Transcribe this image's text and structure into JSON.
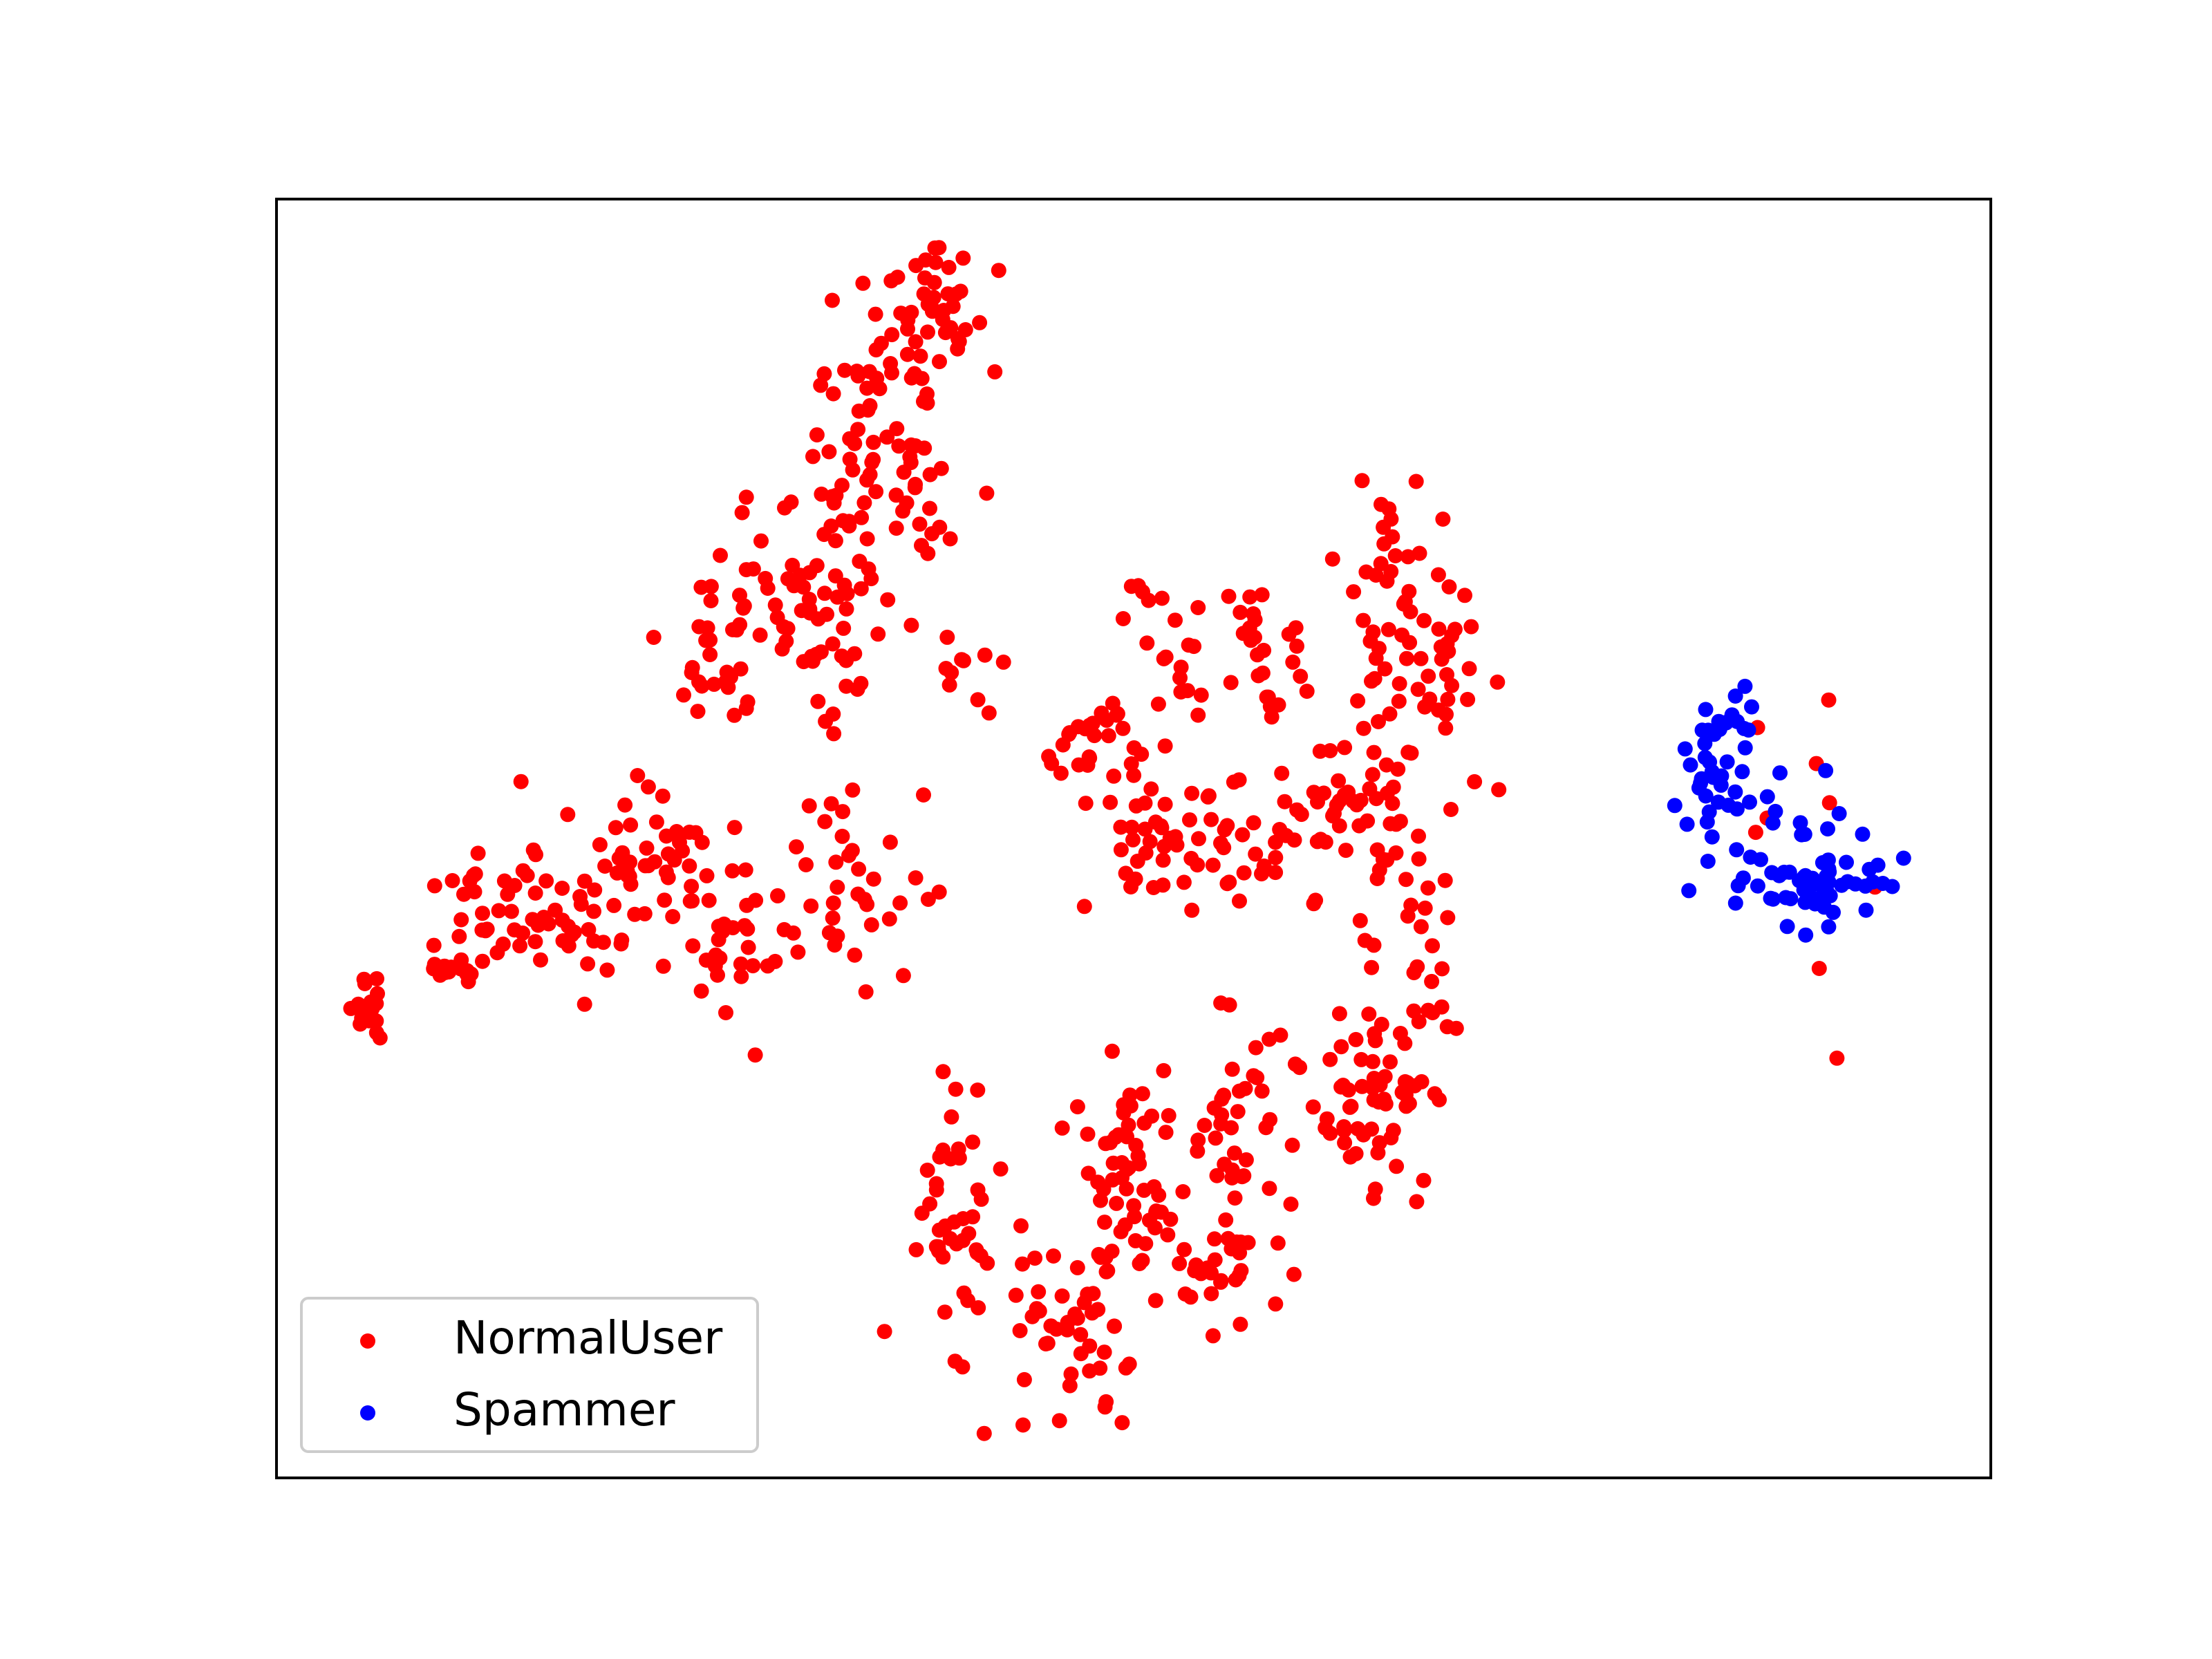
{
  "chart_data": {
    "type": "scatter",
    "title": "",
    "xlabel": "",
    "ylabel": "",
    "xlim": [
      0,
      100
    ],
    "ylim": [
      0,
      100
    ],
    "grid": false,
    "ticks": false,
    "legend_position": "lower-left",
    "series": [
      {
        "name": "NormalUser",
        "color": "#ff0000",
        "clusters": [
          {
            "cx": 5.4,
            "cy": 37.0,
            "sx": 0.5,
            "sy": 1.3,
            "n": 22
          },
          {
            "cx": 10.0,
            "cy": 40.0,
            "sx": 1.1,
            "sy": 0.6,
            "n": 14
          },
          {
            "cx": 15.5,
            "cy": 43.5,
            "sx": 2.8,
            "sy": 2.6,
            "n": 55
          },
          {
            "cx": 22.0,
            "cy": 47.5,
            "sx": 3.0,
            "sy": 3.0,
            "n": 55
          },
          {
            "cx": 27.0,
            "cy": 41.0,
            "sx": 1.5,
            "sy": 2.2,
            "n": 25
          },
          {
            "cx": 33.5,
            "cy": 46.5,
            "sx": 2.2,
            "sy": 3.6,
            "n": 35
          },
          {
            "cx": 26.0,
            "cy": 64.0,
            "sx": 1.6,
            "sy": 3.8,
            "n": 30
          },
          {
            "cx": 32.0,
            "cy": 68.0,
            "sx": 2.6,
            "sy": 5.0,
            "n": 60
          },
          {
            "cx": 36.0,
            "cy": 77.5,
            "sx": 2.6,
            "sy": 5.0,
            "n": 60
          },
          {
            "cx": 38.0,
            "cy": 92.0,
            "sx": 2.0,
            "sy": 2.4,
            "n": 40
          },
          {
            "cx": 36.0,
            "cy": 86.0,
            "sx": 2.5,
            "sy": 2.0,
            "n": 20
          },
          {
            "cx": 40.0,
            "cy": 63.0,
            "sx": 1.0,
            "sy": 1.6,
            "n": 10
          },
          {
            "cx": 39.5,
            "cy": 19.0,
            "sx": 1.2,
            "sy": 6.0,
            "n": 45
          },
          {
            "cx": 46.5,
            "cy": 12.5,
            "sx": 1.8,
            "sy": 3.5,
            "n": 50
          },
          {
            "cx": 49.5,
            "cy": 25.0,
            "sx": 1.7,
            "sy": 4.0,
            "n": 45
          },
          {
            "cx": 54.5,
            "cy": 17.5,
            "sx": 2.6,
            "sy": 4.0,
            "n": 45
          },
          {
            "cx": 56.0,
            "cy": 28.0,
            "sx": 1.5,
            "sy": 3.5,
            "n": 30
          },
          {
            "cx": 62.5,
            "cy": 28.0,
            "sx": 2.0,
            "sy": 4.5,
            "n": 45
          },
          {
            "cx": 66.0,
            "cy": 34.0,
            "sx": 1.5,
            "sy": 3.0,
            "n": 20
          },
          {
            "cx": 48.0,
            "cy": 57.5,
            "sx": 1.8,
            "sy": 2.0,
            "n": 30
          },
          {
            "cx": 51.5,
            "cy": 50.5,
            "sx": 2.2,
            "sy": 3.0,
            "n": 35
          },
          {
            "cx": 56.5,
            "cy": 50.5,
            "sx": 2.2,
            "sy": 2.6,
            "n": 30
          },
          {
            "cx": 58.0,
            "cy": 64.5,
            "sx": 1.3,
            "sy": 4.0,
            "n": 25
          },
          {
            "cx": 52.5,
            "cy": 65.5,
            "sx": 1.5,
            "sy": 3.0,
            "n": 20
          },
          {
            "cx": 61.5,
            "cy": 52.0,
            "sx": 1.3,
            "sy": 2.6,
            "n": 15
          },
          {
            "cx": 64.5,
            "cy": 53.0,
            "sx": 1.4,
            "sy": 6.0,
            "n": 45
          },
          {
            "cx": 65.5,
            "cy": 70.5,
            "sx": 1.3,
            "sy": 4.0,
            "n": 35
          },
          {
            "cx": 68.5,
            "cy": 61.0,
            "sx": 1.3,
            "sy": 4.0,
            "n": 25
          },
          {
            "cx": 67.0,
            "cy": 39.0,
            "sx": 1.2,
            "sy": 4.0,
            "n": 15
          },
          {
            "cx": 89.0,
            "cy": 50.0,
            "sx": 2.5,
            "sy": 5.5,
            "n": 9
          }
        ]
      },
      {
        "name": "Spammer",
        "color": "#0000ff",
        "clusters": [
          {
            "cx": 84.0,
            "cy": 54.0,
            "sx": 1.2,
            "sy": 2.4,
            "n": 30
          },
          {
            "cx": 89.5,
            "cy": 46.5,
            "sx": 2.6,
            "sy": 1.4,
            "n": 55
          },
          {
            "cx": 85.5,
            "cy": 59.0,
            "sx": 1.2,
            "sy": 1.2,
            "n": 15
          },
          {
            "cx": 88.5,
            "cy": 51.0,
            "sx": 1.4,
            "sy": 1.6,
            "n": 10
          }
        ]
      }
    ]
  }
}
